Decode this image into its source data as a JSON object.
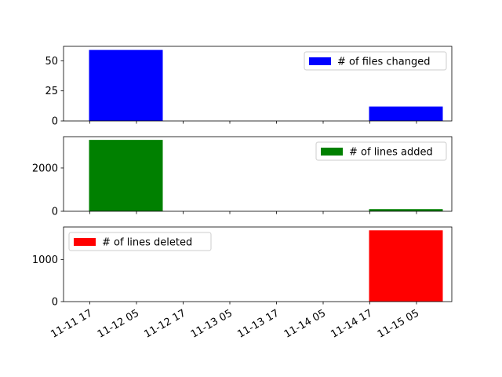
{
  "x_tick_labels": [
    "11-11 17",
    "11-12 05",
    "11-12 17",
    "11-13 05",
    "11-13 17",
    "11-14 05",
    "11-14 17",
    "11-15 05"
  ],
  "chart_data": [
    {
      "type": "bar",
      "x": [
        "2023-11-11 17:00",
        "2023-11-14 17:00"
      ],
      "values": [
        59,
        12
      ],
      "series": [
        {
          "name": "# of files changed",
          "values": [
            59,
            12
          ]
        }
      ],
      "y_ticks": [
        0,
        25,
        50
      ],
      "ylim": [
        0,
        62
      ],
      "legend_position": "upper right",
      "color": "#0000ff"
    },
    {
      "type": "bar",
      "x": [
        "2023-11-11 17:00",
        "2023-11-14 17:00"
      ],
      "values": [
        3300,
        100
      ],
      "series": [
        {
          "name": "# of lines added",
          "values": [
            3300,
            100
          ]
        }
      ],
      "y_ticks": [
        0,
        2000
      ],
      "ylim": [
        0,
        3450
      ],
      "legend_position": "upper right",
      "color": "#008000"
    },
    {
      "type": "bar",
      "x": [
        "2023-11-11 17:00",
        "2023-11-14 17:00"
      ],
      "values": [
        0,
        1700
      ],
      "series": [
        {
          "name": "# of lines deleted",
          "values": [
            0,
            1700
          ]
        }
      ],
      "y_ticks": [
        0,
        1000
      ],
      "ylim": [
        0,
        1780
      ],
      "legend_position": "upper left",
      "color": "#ff0000"
    }
  ]
}
